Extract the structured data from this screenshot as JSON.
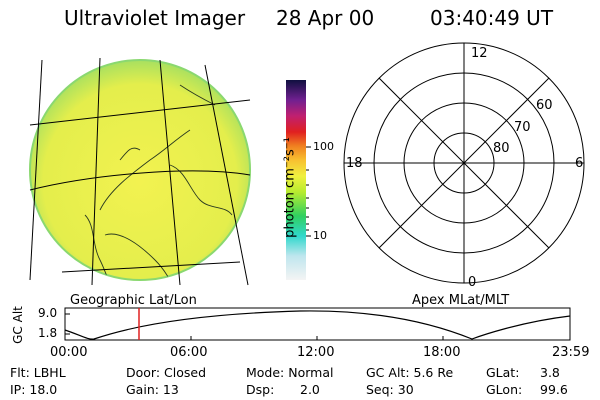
{
  "header": {
    "instrument": "Ultraviolet Imager",
    "date": "28 Apr 00",
    "time": "03:40:49 UT"
  },
  "colorbar": {
    "label": "photon cm⁻²s⁻¹",
    "tick_100": "100",
    "tick_10": "10"
  },
  "polar": {
    "mlt_top": "12",
    "mlt_left": "18",
    "mlt_right": "6",
    "mlt_bottom": "0",
    "lat_60": "60",
    "lat_70": "70",
    "lat_80": "80"
  },
  "map": {
    "left_caption": "Geographic Lat/Lon",
    "right_caption": "Apex MLat/MLT"
  },
  "orbit": {
    "ylabel": "GC Alt",
    "ytick_top": "9.0",
    "ytick_bottom": "1.8",
    "xticks": [
      "00:00",
      "06:00",
      "12:00",
      "18:00",
      "23:59"
    ]
  },
  "info": {
    "flt": "Flt: LBHL",
    "ip": "IP: 18.0",
    "door": "Door: Closed",
    "gain": "Gain: 13",
    "mode": "Mode: Normal",
    "dsp_label": "Dsp:",
    "dsp_value": "2.0",
    "gcalt": "GC Alt: 5.6 Re",
    "seq": "Seq: 30",
    "glat": "GLat:",
    "glat_value": "3.8",
    "glon": "GLon:",
    "glon_value": "99.6"
  },
  "colors": {
    "disk_fill": "#eaf04a",
    "disk_edge": "#7ad66a",
    "orbit_marker": "#e02020"
  }
}
